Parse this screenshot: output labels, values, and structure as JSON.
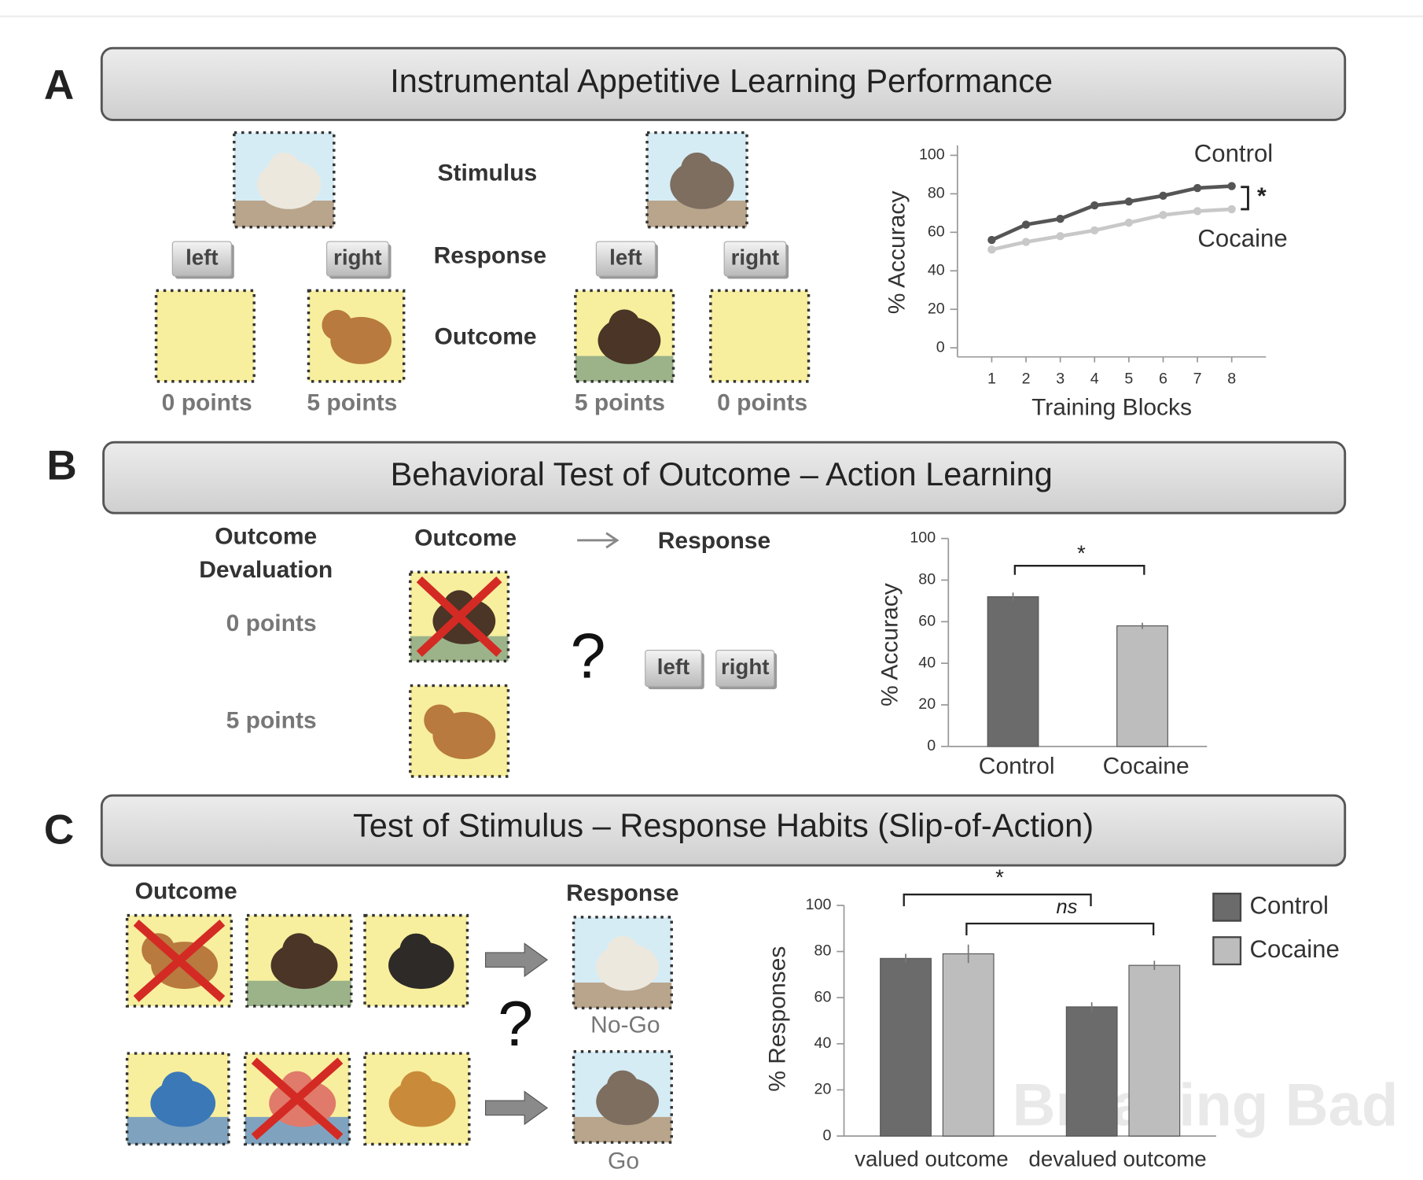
{
  "panels": [
    {
      "label": "A",
      "title": "Instrumental Appetitive Learning Performance",
      "row_labels": [
        "Stimulus",
        "Response",
        "Outcome"
      ],
      "buttons": [
        "left",
        "right",
        "left",
        "right"
      ],
      "points": [
        "0 points",
        "5 points",
        "5 points",
        "0 points"
      ]
    },
    {
      "label": "B",
      "title": "Behavioral Test of Outcome – Action Learning",
      "devaluation_label": [
        "Outcome",
        "Devaluation"
      ],
      "outcome_label": "Outcome",
      "response_label": "Response",
      "points": [
        "0 points",
        "5 points"
      ],
      "question": "?",
      "buttons": [
        "left",
        "right"
      ]
    },
    {
      "label": "C",
      "title": "Test of Stimulus – Response Habits (Slip-of-Action)",
      "outcome_label": "Outcome",
      "response_label": "Response",
      "question": "?",
      "responses": [
        "No-Go",
        "Go"
      ]
    }
  ],
  "chart_data": [
    {
      "type": "line",
      "x": [
        1,
        2,
        3,
        4,
        5,
        6,
        7,
        8
      ],
      "xlim": [
        0,
        9
      ],
      "xticks": [
        1,
        2,
        3,
        4,
        5,
        6,
        7,
        8
      ],
      "xlabel": "Training Blocks",
      "ylabel": "% Accuracy",
      "ylim": [
        0,
        100
      ],
      "yticks": [
        0,
        20,
        40,
        60,
        80,
        100
      ],
      "series": [
        {
          "name": "Control",
          "color": "#555555",
          "values": [
            56,
            64,
            67,
            74,
            76,
            79,
            83,
            84
          ]
        },
        {
          "name": "Cocaine",
          "color": "#c8c8c8",
          "values": [
            51,
            55,
            58,
            61,
            65,
            69,
            71,
            72
          ]
        }
      ],
      "annotations": [
        "*"
      ]
    },
    {
      "type": "bar",
      "categories": [
        "Control",
        "Cocaine"
      ],
      "values": [
        72,
        58
      ],
      "errors": [
        2,
        1.5
      ],
      "colors": [
        "#6b6b6b",
        "#bdbdbd"
      ],
      "ylabel": "% Accuracy",
      "ylim": [
        0,
        100
      ],
      "yticks": [
        0,
        20,
        40,
        60,
        80,
        100
      ],
      "annotations": [
        "*"
      ]
    },
    {
      "type": "grouped_bar",
      "categories": [
        "valued outcome",
        "devalued outcome"
      ],
      "ylabel": "% Responses",
      "ylim": [
        0,
        100
      ],
      "yticks": [
        0,
        20,
        40,
        60,
        80,
        100
      ],
      "series": [
        {
          "name": "Control",
          "color": "#6b6b6b",
          "values": [
            77,
            56
          ],
          "errors": [
            2,
            2
          ]
        },
        {
          "name": "Cocaine",
          "color": "#bdbdbd",
          "values": [
            79,
            74
          ],
          "errors": [
            4,
            2
          ]
        }
      ],
      "legend": "upper-right",
      "annotations": [
        "*",
        "ns"
      ]
    }
  ],
  "watermark": "Breaking Bad"
}
